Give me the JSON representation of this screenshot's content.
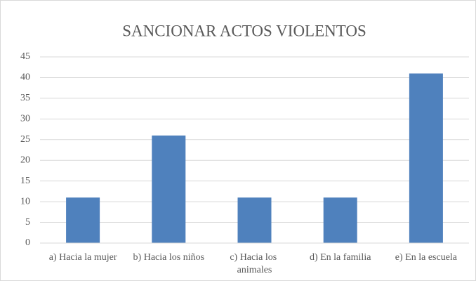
{
  "chart_data": {
    "type": "bar",
    "title": "SANCIONAR ACTOS VIOLENTOS",
    "categories": [
      "a) Hacia la mujer",
      "b) Hacia los niños",
      "c) Hacia los animales",
      "d) En la familia",
      "e) En la escuela"
    ],
    "values": [
      11,
      26,
      11,
      11,
      41
    ],
    "color": "#4f81bd",
    "ylim": [
      0,
      45
    ],
    "yticks": [
      0,
      5,
      10,
      15,
      20,
      25,
      30,
      35,
      40,
      45
    ],
    "grid": true
  }
}
